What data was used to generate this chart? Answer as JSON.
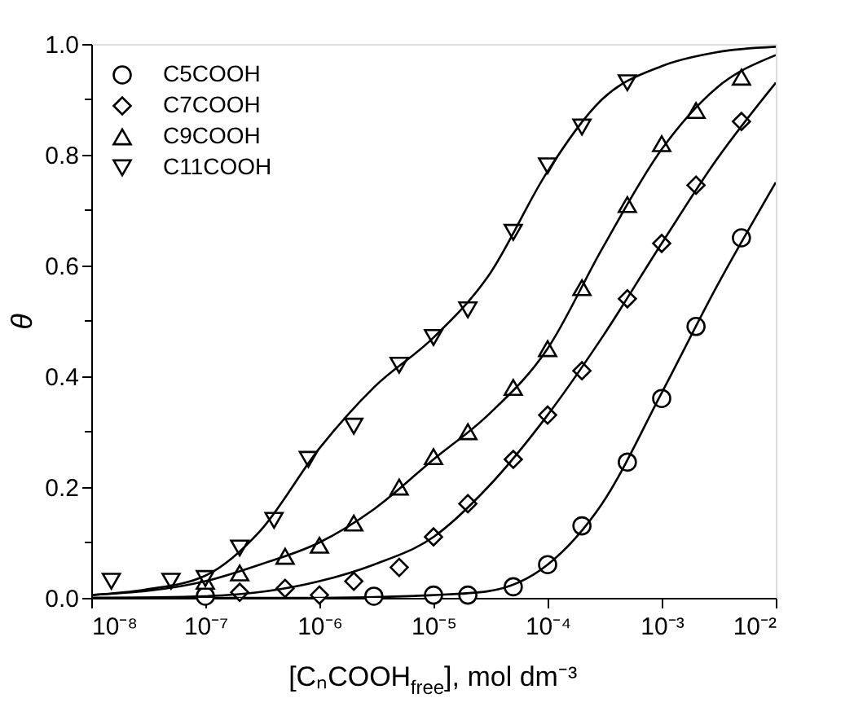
{
  "chart_data": {
    "type": "scatter",
    "xlabel": "[CₙCOOH$_{free}$], mol dm⁻³",
    "ylabel": "θ",
    "log": "x",
    "grid": false,
    "legend": "top left",
    "xlim": [
      1e-08,
      0.01
    ],
    "ylim": [
      0,
      1
    ],
    "xticks": [
      {
        "value": 1e-08,
        "label": "10⁻⁸"
      },
      {
        "value": 1e-07,
        "label": "10⁻⁷"
      },
      {
        "value": 1e-06,
        "label": "10⁻⁶"
      },
      {
        "value": 1e-05,
        "label": "10⁻⁵"
      },
      {
        "value": 0.0001,
        "label": "10⁻⁴"
      },
      {
        "value": 0.001,
        "label": "10⁻³"
      },
      {
        "value": 0.01,
        "label": "10⁻²"
      }
    ],
    "yticks": [
      {
        "value": 0,
        "label": "0.0"
      },
      {
        "value": 0.1,
        "label": null
      },
      {
        "value": 0.2,
        "label": "0.2"
      },
      {
        "value": 0.3,
        "label": null
      },
      {
        "value": 0.4,
        "label": "0.4"
      },
      {
        "value": 0.5,
        "label": null
      },
      {
        "value": 0.6,
        "label": "0.6"
      },
      {
        "value": 0.7,
        "label": null
      },
      {
        "value": 0.8,
        "label": "0.8"
      },
      {
        "value": 0.9,
        "label": null
      },
      {
        "value": 1.0,
        "label": "1.0"
      }
    ],
    "series": [
      {
        "name": "C5COOH",
        "marker": "circle",
        "color": "#000000",
        "x": [
          1e-07,
          3e-06,
          1e-05,
          2e-05,
          5e-05,
          0.0001,
          0.0002,
          0.0005,
          0.001,
          0.002,
          0.005
        ],
        "values": [
          0.003,
          0.003,
          0.005,
          0.005,
          0.02,
          0.06,
          0.13,
          0.245,
          0.36,
          0.49,
          0.65
        ]
      },
      {
        "name": "C7COOH",
        "marker": "diamond",
        "color": "#000000",
        "x": [
          2e-07,
          5e-07,
          1e-06,
          2e-06,
          5e-06,
          1e-05,
          2e-05,
          5e-05,
          0.0001,
          0.0002,
          0.0005,
          0.001,
          0.002,
          0.005
        ],
        "values": [
          0.01,
          0.017,
          0.005,
          0.03,
          0.055,
          0.11,
          0.17,
          0.25,
          0.33,
          0.41,
          0.54,
          0.64,
          0.745,
          0.86
        ]
      },
      {
        "name": "C9COOH",
        "marker": "triangle-up",
        "color": "#000000",
        "x": [
          1e-07,
          2e-07,
          5e-07,
          1e-06,
          2e-06,
          5e-06,
          1e-05,
          2e-05,
          5e-05,
          0.0001,
          0.0002,
          0.0005,
          0.001,
          0.002,
          0.005
        ],
        "values": [
          0.03,
          0.045,
          0.075,
          0.095,
          0.135,
          0.2,
          0.255,
          0.3,
          0.38,
          0.45,
          0.56,
          0.71,
          0.82,
          0.88,
          0.94
        ]
      },
      {
        "name": "C11COOH",
        "marker": "triangle-down",
        "color": "#000000",
        "x": [
          1.5e-08,
          5e-08,
          1e-07,
          2e-07,
          4e-07,
          8e-07,
          2e-06,
          5e-06,
          1e-05,
          2e-05,
          5e-05,
          0.0001,
          0.0002,
          0.0005
        ],
        "values": [
          0.03,
          0.03,
          0.035,
          0.09,
          0.14,
          0.25,
          0.31,
          0.42,
          0.47,
          0.52,
          0.66,
          0.78,
          0.85,
          0.93
        ]
      },
      {
        "type": "line",
        "marker": "none",
        "color": "#000000",
        "x": [
          1e-08,
          1e-06,
          1e-05,
          3e-05,
          0.0001,
          0.0003,
          0.001,
          0.003,
          0.01
        ],
        "values": [
          0,
          0,
          0.005,
          0.012,
          0.06,
          0.17,
          0.37,
          0.56,
          0.75
        ]
      },
      {
        "type": "line",
        "marker": "none",
        "color": "#000000",
        "x": [
          1e-08,
          1e-07,
          1e-06,
          3e-06,
          1e-05,
          3e-05,
          0.0001,
          0.0003,
          0.001,
          0.003,
          0.01
        ],
        "values": [
          0,
          0.003,
          0.03,
          0.06,
          0.11,
          0.2,
          0.33,
          0.47,
          0.64,
          0.79,
          0.93
        ]
      },
      {
        "type": "line",
        "marker": "none",
        "color": "#000000",
        "x": [
          1e-08,
          1e-07,
          3e-07,
          1e-06,
          3e-06,
          1e-05,
          3e-05,
          0.0001,
          0.0003,
          0.001,
          0.003,
          0.01
        ],
        "values": [
          0.005,
          0.03,
          0.06,
          0.1,
          0.16,
          0.25,
          0.33,
          0.45,
          0.63,
          0.81,
          0.92,
          0.98
        ]
      },
      {
        "type": "line",
        "marker": "none",
        "color": "#000000",
        "x": [
          1e-08,
          3e-08,
          1e-07,
          3e-07,
          1e-06,
          3e-06,
          1e-05,
          3e-05,
          0.0001,
          0.0003,
          0.001,
          0.003,
          0.01
        ],
        "values": [
          0.005,
          0.015,
          0.04,
          0.12,
          0.27,
          0.38,
          0.47,
          0.58,
          0.77,
          0.9,
          0.96,
          0.985,
          0.995
        ]
      }
    ]
  }
}
